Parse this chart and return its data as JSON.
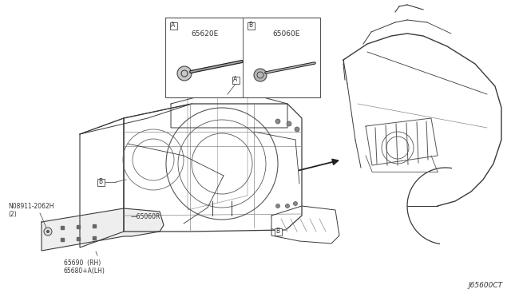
{
  "background_color": "#ffffff",
  "figure_width": 6.4,
  "figure_height": 3.72,
  "dpi": 100,
  "diagram_code": "J65600CT",
  "parts": {
    "part_A_number": "65620E",
    "part_B_number": "65060E",
    "part_65060R": "65060R",
    "part_65690": "65690  (RH)",
    "part_65680": "65680+A(LH)",
    "bolt": "N08911-2062H\n(2)"
  },
  "colors": {
    "line": "#3a3a3a",
    "line_light": "#888888",
    "text": "#333333",
    "bg": "#ffffff"
  }
}
